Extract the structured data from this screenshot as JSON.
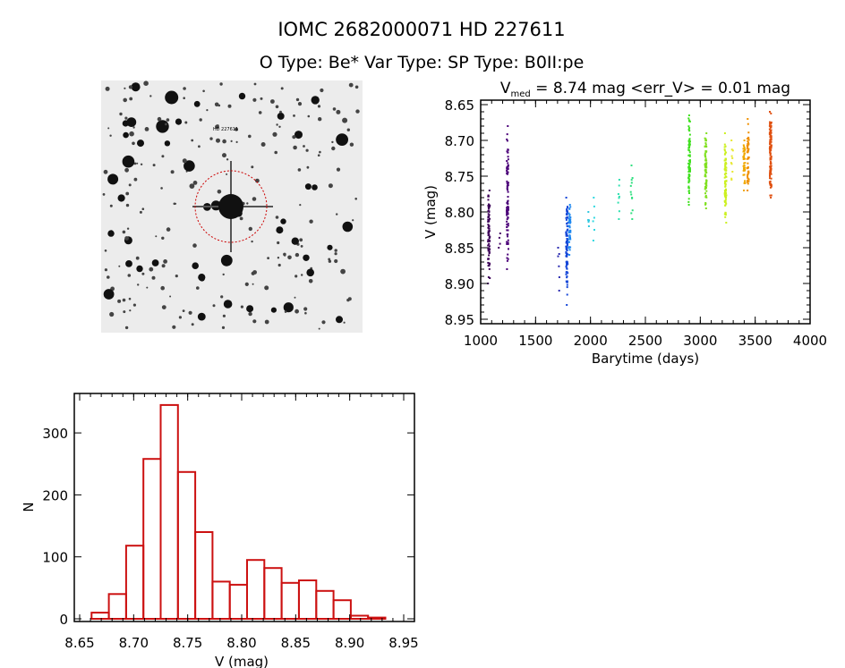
{
  "header": {
    "title": "IOMC 2682000071    HD 227611",
    "subtitle": "O Type: Be*  Var Type:    SP Type: B0II:pe"
  },
  "sky_image": {
    "target_label": "HD 227611",
    "marker_color": "#cc0000"
  },
  "chart_data": [
    {
      "type": "scatter",
      "title_prefix": "V",
      "title_sub": "med",
      "title_rest": " = 8.74 mag <err_V> = 0.01 mag",
      "xlabel": "Barytime (days)",
      "ylabel": "V (mag)",
      "xlim": [
        1000,
        4000
      ],
      "ylim": [
        8.95,
        8.65
      ],
      "y_inverted": true,
      "xticks": [
        "1000",
        "1500",
        "2000",
        "2500",
        "3000",
        "3500",
        "4000"
      ],
      "yticks": [
        "8.65",
        "8.70",
        "8.75",
        "8.80",
        "8.85",
        "8.90",
        "8.95"
      ],
      "grid": false,
      "clusters": [
        {
          "x": 1075,
          "v_min": 8.77,
          "v_max": 8.9,
          "n": 90,
          "color": "#3c0058"
        },
        {
          "x": 1170,
          "v_min": 8.83,
          "v_max": 8.85,
          "n": 4,
          "color": "#440064"
        },
        {
          "x": 1245,
          "v_min": 8.68,
          "v_max": 8.88,
          "n": 90,
          "color": "#4a0078"
        },
        {
          "x": 1710,
          "v_min": 8.85,
          "v_max": 8.91,
          "n": 6,
          "color": "#2a2ab0"
        },
        {
          "x": 1785,
          "v_min": 8.78,
          "v_max": 8.93,
          "n": 90,
          "color": "#1446d8"
        },
        {
          "x": 1810,
          "v_min": 8.79,
          "v_max": 8.86,
          "n": 40,
          "color": "#1e88f0"
        },
        {
          "x": 1985,
          "v_min": 8.8,
          "v_max": 8.82,
          "n": 5,
          "color": "#30c8e0"
        },
        {
          "x": 2030,
          "v_min": 8.78,
          "v_max": 8.84,
          "n": 6,
          "color": "#30d8e0"
        },
        {
          "x": 2255,
          "v_min": 8.755,
          "v_max": 8.81,
          "n": 8,
          "color": "#30e0b0"
        },
        {
          "x": 2375,
          "v_min": 8.735,
          "v_max": 8.81,
          "n": 12,
          "color": "#30e080"
        },
        {
          "x": 2900,
          "v_min": 8.665,
          "v_max": 8.79,
          "n": 80,
          "color": "#40e020"
        },
        {
          "x": 3050,
          "v_min": 8.69,
          "v_max": 8.795,
          "n": 70,
          "color": "#80e020"
        },
        {
          "x": 3230,
          "v_min": 8.69,
          "v_max": 8.815,
          "n": 80,
          "color": "#ccf020"
        },
        {
          "x": 3290,
          "v_min": 8.7,
          "v_max": 8.755,
          "n": 10,
          "color": "#e8e830"
        },
        {
          "x": 3400,
          "v_min": 8.7,
          "v_max": 8.77,
          "n": 40,
          "color": "#f0a800"
        },
        {
          "x": 3435,
          "v_min": 8.67,
          "v_max": 8.77,
          "n": 50,
          "color": "#f09000"
        },
        {
          "x": 3640,
          "v_min": 8.66,
          "v_max": 8.78,
          "n": 110,
          "color": "#e05010"
        }
      ]
    },
    {
      "type": "bar",
      "subtype": "histogram",
      "xlabel": "V (mag)",
      "ylabel": "N",
      "xlim": [
        8.65,
        8.95
      ],
      "ylim": [
        -4,
        364
      ],
      "xticks": [
        "8.65",
        "8.70",
        "8.75",
        "8.80",
        "8.85",
        "8.90",
        "8.95"
      ],
      "yticks": [
        "0",
        "100",
        "200",
        "300"
      ],
      "bin_start": 8.661,
      "bin_width": 0.016,
      "values": [
        10,
        40,
        118,
        258,
        345,
        237,
        140,
        60,
        55,
        95,
        82,
        58,
        62,
        45,
        30,
        5,
        2
      ],
      "bar_color": "#cc1111",
      "grid": false
    }
  ]
}
